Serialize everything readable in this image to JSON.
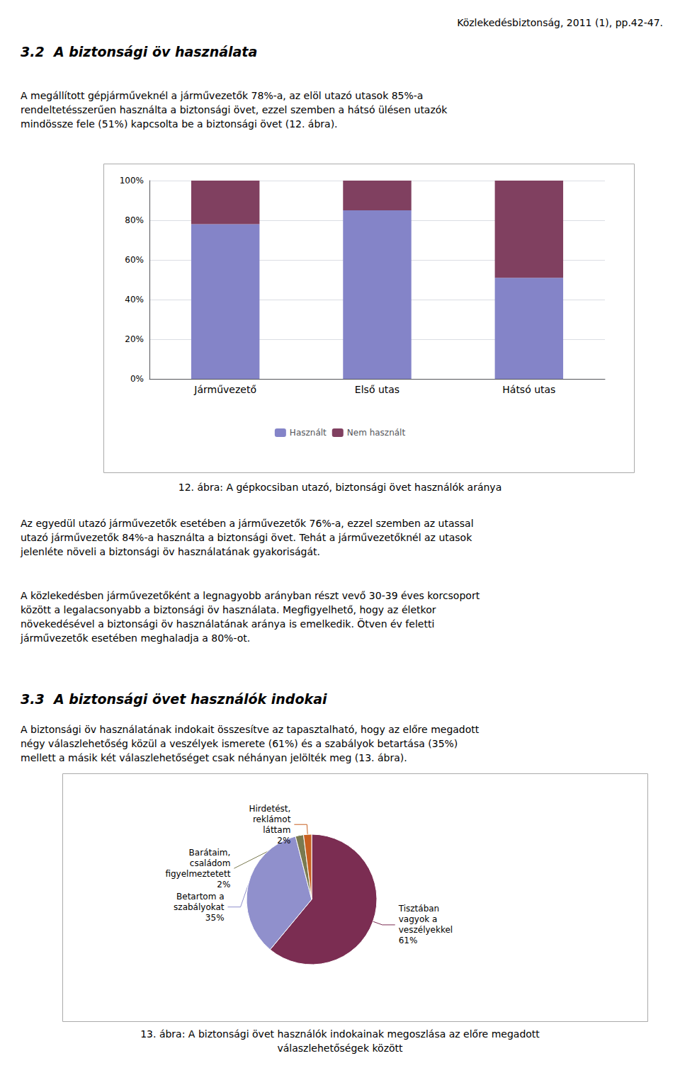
{
  "chart_data": [
    {
      "type": "bar",
      "title": "12. ábra: A gépkocsiban utazó, biztonsági övet használók aránya",
      "annotations": [
        "Közlekedésbiztonság, 2011 (1), pp.42-47.",
        "3.2  A biztonsági öv használata",
        "A megállított gépjárműveknél a járművezetők 78%-a, az elöl utazó utasok 85%-a\nrendeltetésszerűen használta a biztonsági övet, ezzel szemben a hátsó ülésen utazók\nmindössze fele (51%) kapcsolta be a biztonsági övet (12. ábra).",
        "Az egyedül utazó járművezetők esetében a járművezetők 76%-a, ezzel szemben az utassal\nutazó járművezetők 84%-a használta a biztonsági övet. Tehát a járművezetőknél az utasok\njelenléte növeli a biztonsági öv használatának gyakoriságát.",
        "A közlekedésben járművezetőként a legnagyobb arányban részt vevő 30-39 éves korcsoport\nközött a legalacsonyabb a biztonsági öv használata. Megfigyelhető, hogy az életkor\nnövekedésével a biztonsági öv használatának aránya is emelkedik. Ötven év feletti\njárművezetők esetében meghaladja a 80%-ot."
      ],
      "categories": [
        "Járművezető",
        "Első utas",
        "Hátsó utas"
      ],
      "series": [
        {
          "name": "Használt",
          "color": "#8484c8",
          "values": [
            0.78,
            0.85,
            0.51
          ]
        },
        {
          "name": "Nem használt",
          "color": "#804060",
          "values": [
            0.22,
            0.15,
            0.49
          ]
        }
      ],
      "stacked": true,
      "ylim": [
        0,
        1.0
      ],
      "yticks": [
        {
          "value": 0,
          "label": "0%"
        },
        {
          "value": 0.2,
          "label": "20%"
        },
        {
          "value": 0.4,
          "label": "40%"
        },
        {
          "value": 0.6,
          "label": "60%"
        },
        {
          "value": 0.8,
          "label": "80%"
        },
        {
          "value": 1.0,
          "label": "100%"
        }
      ],
      "grid": true,
      "legend": "bottom"
    },
    {
      "type": "pie",
      "title": "13. ábra: A biztonsági övet használók indokainak megoszlása az előre megadott\nválaszlehetőségek között",
      "annotations": [
        "3.3  A biztonsági övet használók indokai",
        "A biztonsági öv használatának indokait összesítve az tapasztalható, hogy az előre megadott\nnégy válaszlehetőség közül a veszélyek ismerete (61%) és a szabályok betartása (35%)\nmellett a másik két válaszlehetőséget csak néhányan jelölték meg (13. ábra)."
      ],
      "categories": [
        "Tisztában\nvagyok a\nveszélyekkel",
        "Betartom a\nszabályokat",
        "Barátaim,\ncsaládom\nfigyelmeztetett",
        "Hirdetést,\nreklámot\nláttam"
      ],
      "values": [
        61,
        35,
        2,
        2
      ],
      "value_labels": [
        "61%",
        "35%",
        "2%",
        "2%"
      ],
      "colors": [
        "#7b2d52",
        "#9090cc",
        "#7a7a50",
        "#c86020"
      ],
      "data_labels": true
    }
  ]
}
